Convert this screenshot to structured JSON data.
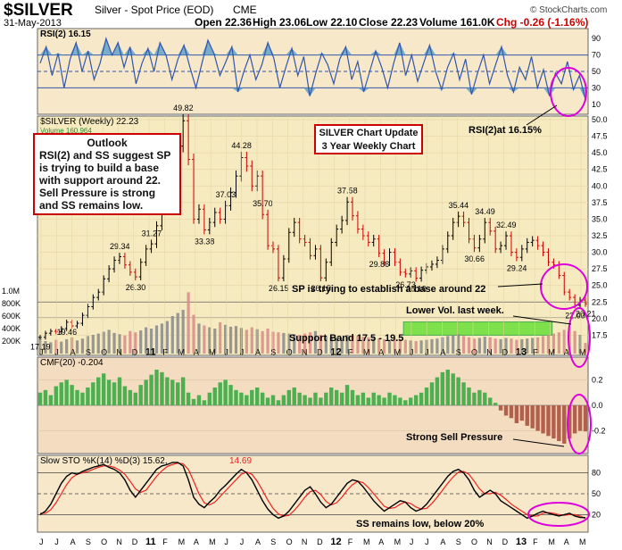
{
  "header": {
    "symbol": "$SILVER",
    "description": "Silver - Spot Price (EOD)",
    "exchange": "CME",
    "date": "31-May-2013",
    "open": "Open 22.36",
    "high": "High 23.06",
    "low": "Low 22.10",
    "close": "Close 22.23",
    "volume": "Volume 161.0K",
    "change": "Chg -0.26 (-1.16%)",
    "copyright": "© StockCharts.com"
  },
  "colors": {
    "up": "#000000",
    "down": "#cc0000",
    "rsi_line": "#3355aa",
    "rsi_fill": "#5a9ec9",
    "cmf_pos": "#4caf50",
    "cmf_neg": "#b0604c",
    "sto_k": "#000000",
    "sto_d": "#ee2222",
    "annotation_border": "#cc0000",
    "highlight_circle": "#dd00dd",
    "support_band": "#7ee04a"
  },
  "chart_data": [
    {
      "type": "line",
      "panel": "rsi",
      "title": "RSI(2) 16.15",
      "ylim": [
        0,
        100
      ],
      "ticks": [
        10,
        30,
        50,
        70,
        90
      ],
      "ref_lines": [
        30,
        50,
        70
      ],
      "series": [
        {
          "name": "RSI(2)",
          "values": [
            60,
            80,
            45,
            72,
            30,
            65,
            85,
            50,
            75,
            40,
            60,
            90,
            70,
            85,
            55,
            80,
            35,
            60,
            78,
            50,
            85,
            70,
            40,
            65,
            82,
            55,
            30,
            60,
            88,
            72,
            45,
            62,
            80,
            25,
            50,
            70,
            40,
            58,
            85,
            66,
            30,
            55,
            78,
            45,
            68,
            20,
            48,
            72,
            58,
            35,
            65,
            80,
            40,
            62,
            25,
            50,
            75,
            55,
            30,
            60,
            85,
            45,
            70,
            38,
            60,
            82,
            50,
            28,
            55,
            72,
            40,
            65,
            22,
            48,
            70,
            35,
            58,
            80,
            45,
            25,
            55,
            40,
            68,
            30,
            52,
            20,
            48,
            35,
            62,
            28,
            45,
            16
          ]
        }
      ]
    },
    {
      "type": "bar",
      "panel": "price",
      "title": "$SILVER (Weekly) 22.23",
      "ylim": [
        15,
        50
      ],
      "ticks": [
        17.5,
        20.0,
        22.5,
        25.0,
        27.5,
        30.0,
        32.5,
        35.0,
        37.5,
        40.0,
        42.5,
        45.0,
        47.5,
        50.0
      ],
      "x_labels": [
        "J",
        "J",
        "A",
        "S",
        "O",
        "N",
        "D",
        "11",
        "F",
        "M",
        "A",
        "M",
        "J",
        "J",
        "A",
        "S",
        "O",
        "N",
        "D",
        "12",
        "F",
        "M",
        "A",
        "M",
        "J",
        "J",
        "A",
        "S",
        "O",
        "N",
        "D",
        "13",
        "F",
        "M",
        "A",
        "M"
      ],
      "close": [
        17.19,
        17.8,
        18.1,
        18.0,
        18.5,
        19.46,
        18.9,
        19.3,
        20.5,
        21.8,
        23.2,
        24.0,
        26.0,
        27.5,
        28.8,
        29.34,
        28.1,
        27.0,
        26.3,
        28.5,
        30.5,
        31.27,
        34.0,
        36.5,
        38.5,
        42.0,
        46.0,
        49.82,
        44.0,
        35.0,
        36.5,
        33.38,
        34.5,
        36.0,
        35.0,
        37.03,
        39.0,
        41.5,
        44.28,
        43.0,
        40.0,
        41.5,
        35.7,
        31.0,
        30.5,
        26.15,
        29.0,
        33.0,
        34.5,
        32.0,
        31.5,
        29.5,
        30.5,
        26.15,
        28.5,
        31.5,
        33.5,
        34.8,
        37.58,
        35.5,
        33.5,
        32.5,
        31.5,
        32.0,
        29.86,
        28.5,
        30.0,
        28.5,
        27.0,
        26.73,
        27.2,
        26.1,
        27.3,
        27.8,
        28.2,
        28.8,
        30.5,
        32.5,
        34.5,
        35.44,
        34.5,
        32.0,
        30.66,
        32.0,
        34.49,
        33.2,
        30.5,
        31.0,
        32.49,
        30.0,
        29.24,
        30.5,
        31.5,
        31.8,
        31.0,
        30.0,
        28.5,
        28.1,
        26.5,
        24.0,
        23.2,
        22.0,
        22.8,
        22.23
      ],
      "annotations": [
        {
          "label": "49.82"
        },
        {
          "label": "44.28"
        },
        {
          "label": "37.58"
        },
        {
          "label": "35.44"
        },
        {
          "label": "34.49"
        },
        {
          "label": "32.49"
        },
        {
          "label": "35.70"
        },
        {
          "label": "37.03"
        },
        {
          "label": "33.38"
        },
        {
          "label": "31.27"
        },
        {
          "label": "29.34"
        },
        {
          "label": "26.30"
        },
        {
          "label": "19.46"
        },
        {
          "label": "17.19"
        },
        {
          "label": "26.15"
        },
        {
          "label": "26.15"
        },
        {
          "label": "29.86"
        },
        {
          "label": "26.73"
        },
        {
          "label": "26.10"
        },
        {
          "label": "30.66"
        },
        {
          "label": "29.24"
        },
        {
          "label": "22.00"
        },
        {
          "label": "20.21"
        }
      ],
      "ma_label": "Volume 160,964"
    },
    {
      "type": "bar",
      "panel": "volume",
      "ticks": [
        "1.0M",
        "800K",
        "600K",
        "400K",
        "200K"
      ],
      "values": [
        250,
        200,
        180,
        220,
        190,
        230,
        260,
        210,
        240,
        280,
        300,
        320,
        350,
        380,
        330,
        310,
        290,
        360,
        340,
        370,
        420,
        400,
        450,
        480,
        520,
        600,
        650,
        700,
        980,
        620,
        480,
        450,
        420,
        400,
        500,
        460,
        430,
        440,
        410,
        380,
        420,
        390,
        360,
        400,
        350,
        340,
        330,
        320,
        310,
        300,
        320,
        340,
        360,
        300,
        280,
        270,
        260,
        250,
        300,
        290,
        280,
        270,
        260,
        250,
        240,
        230,
        220,
        240,
        230,
        220,
        210,
        200,
        210,
        220,
        230,
        240,
        260,
        280,
        300,
        310,
        280,
        260,
        240,
        250,
        270,
        260,
        240,
        230,
        250,
        240,
        220,
        230,
        240,
        250,
        260,
        280,
        300,
        320,
        340,
        380,
        420,
        360,
        300,
        170
      ]
    },
    {
      "type": "bar",
      "panel": "cmf",
      "title": "CMF(20) -0.204",
      "ylim": [
        -0.35,
        0.35
      ],
      "ticks": [
        0.2,
        0.0,
        -0.2
      ],
      "values": [
        0.1,
        0.12,
        0.08,
        0.15,
        0.18,
        0.2,
        0.16,
        0.12,
        0.1,
        0.14,
        0.18,
        0.22,
        0.25,
        0.2,
        0.18,
        0.22,
        0.15,
        0.12,
        0.1,
        0.16,
        0.2,
        0.24,
        0.28,
        0.26,
        0.22,
        0.2,
        0.18,
        0.22,
        0.1,
        0.05,
        0.08,
        0.04,
        0.1,
        0.14,
        0.18,
        0.2,
        0.16,
        0.12,
        0.1,
        0.08,
        0.12,
        0.14,
        0.1,
        0.06,
        0.08,
        0.04,
        0.08,
        0.12,
        0.14,
        0.1,
        0.08,
        0.06,
        0.1,
        0.06,
        0.1,
        0.14,
        0.12,
        0.1,
        0.16,
        0.12,
        0.08,
        0.1,
        0.06,
        0.1,
        0.08,
        0.06,
        0.1,
        0.08,
        0.06,
        0.04,
        0.06,
        0.08,
        0.1,
        0.14,
        0.18,
        0.22,
        0.26,
        0.28,
        0.25,
        0.22,
        0.18,
        0.14,
        0.1,
        0.12,
        0.1,
        0.06,
        0.02,
        -0.04,
        -0.08,
        -0.1,
        -0.14,
        -0.12,
        -0.16,
        -0.18,
        -0.2,
        -0.22,
        -0.24,
        -0.26,
        -0.28,
        -0.3,
        -0.26,
        -0.22,
        -0.2,
        -0.204
      ]
    },
    {
      "type": "line",
      "panel": "sto",
      "title": "Slow STO %K(14) %D(3) 15.62, 14.69",
      "ylim": [
        0,
        100
      ],
      "ticks": [
        20,
        50,
        80
      ],
      "ref_lines": [
        20,
        50,
        80
      ],
      "series": [
        {
          "name": "%K(14)",
          "values": [
            20,
            25,
            35,
            50,
            65,
            75,
            80,
            78,
            82,
            85,
            88,
            90,
            92,
            88,
            85,
            80,
            70,
            55,
            45,
            55,
            65,
            75,
            85,
            90,
            92,
            95,
            95,
            90,
            70,
            45,
            35,
            30,
            38,
            45,
            55,
            62,
            70,
            78,
            85,
            80,
            70,
            55,
            40,
            28,
            20,
            15,
            18,
            25,
            35,
            45,
            55,
            60,
            50,
            38,
            30,
            35,
            45,
            55,
            65,
            70,
            68,
            60,
            50,
            40,
            32,
            25,
            30,
            35,
            40,
            38,
            30,
            25,
            28,
            35,
            45,
            55,
            65,
            75,
            82,
            85,
            80,
            70,
            55,
            45,
            50,
            55,
            50,
            40,
            35,
            30,
            25,
            20,
            15,
            18,
            22,
            25,
            22,
            20,
            18,
            20,
            22,
            18,
            16,
            15.62
          ]
        },
        {
          "name": "%D(3)",
          "values": [
            22,
            22,
            27,
            37,
            50,
            63,
            73,
            78,
            80,
            82,
            85,
            88,
            90,
            90,
            88,
            84,
            78,
            68,
            57,
            52,
            55,
            65,
            75,
            83,
            89,
            92,
            94,
            93,
            85,
            68,
            50,
            37,
            34,
            38,
            46,
            54,
            62,
            70,
            78,
            81,
            78,
            68,
            55,
            41,
            29,
            21,
            18,
            19,
            26,
            35,
            45,
            53,
            55,
            49,
            39,
            34,
            37,
            45,
            55,
            63,
            68,
            66,
            59,
            50,
            41,
            32,
            29,
            30,
            35,
            38,
            36,
            31,
            28,
            29,
            36,
            45,
            55,
            65,
            74,
            81,
            82,
            78,
            68,
            57,
            50,
            50,
            52,
            48,
            42,
            35,
            30,
            25,
            20,
            18,
            18,
            22,
            23,
            22,
            20,
            19,
            20,
            20,
            18,
            14.69
          ]
        }
      ],
      "x_labels": [
        "J",
        "J",
        "A",
        "S",
        "O",
        "N",
        "D",
        "11",
        "F",
        "M",
        "A",
        "M",
        "J",
        "J",
        "A",
        "S",
        "O",
        "N",
        "D",
        "12",
        "F",
        "M",
        "A",
        "M",
        "J",
        "J",
        "A",
        "S",
        "O",
        "N",
        "D",
        "13",
        "F",
        "M",
        "A",
        "M"
      ]
    }
  ],
  "annotations": {
    "outlook_title": "Outlook",
    "outlook_body": "RSI(2) and SS suggest SP is trying to build a base with support around 22. Sell Pressure is strong and SS remains low.",
    "title_box_line1": "SILVER Chart Update",
    "title_box_line2": "3 Year Weekly Chart",
    "rsi_callout": "RSI(2)at 16.15%",
    "base_callout": "SP is trying to establish a base around 22",
    "vol_callout": "Lower Vol. last week.",
    "support_callout": "Support Band 17.5 - 19.5",
    "cmf_callout": "Strong Sell Pressure",
    "sto_callout": "SS remains low, below 20%"
  }
}
